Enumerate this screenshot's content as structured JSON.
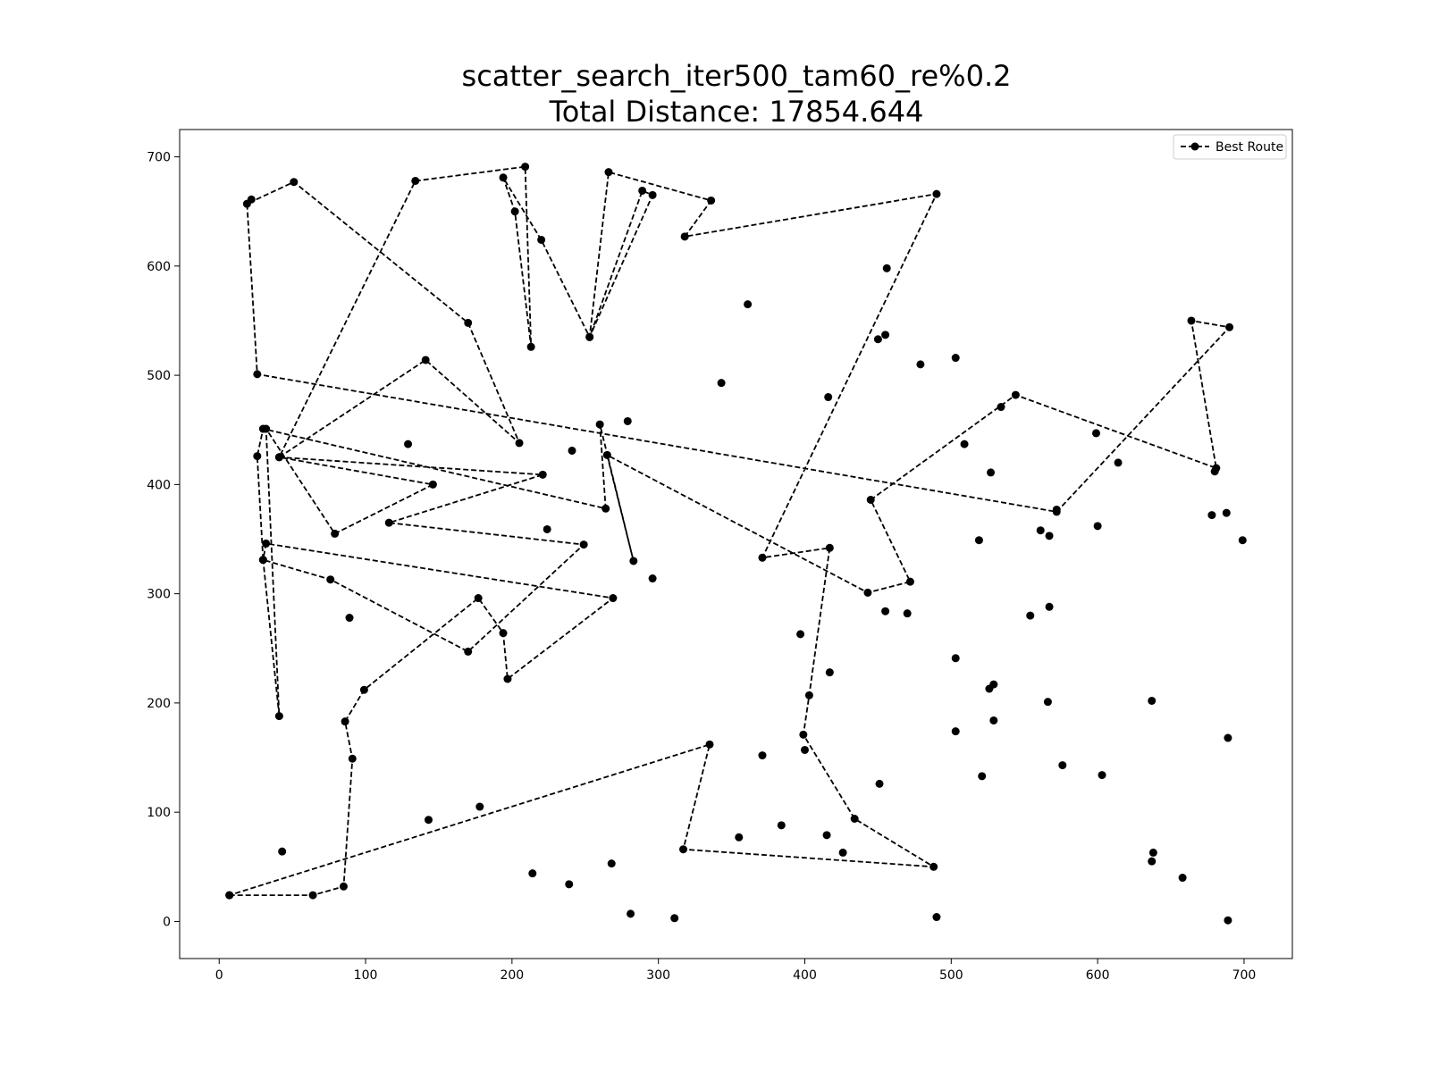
{
  "chart_data": {
    "type": "line",
    "title_line1": "scatter_search_iter500_tam60_re%0.2",
    "title_line2": "Total Distance: 17854.644",
    "xlim": [
      -27,
      733
    ],
    "ylim": [
      -34,
      725
    ],
    "xticks": [
      0,
      100,
      200,
      300,
      400,
      500,
      600,
      700
    ],
    "yticks": [
      0,
      100,
      200,
      300,
      400,
      500,
      600,
      700
    ],
    "legend_position": "top-right",
    "series": [
      {
        "name": "Best Route",
        "color": "#000000",
        "line_style": "dashed",
        "marker": "circle",
        "points": [
          [
            7,
            24
          ],
          [
            64,
            24
          ],
          [
            85,
            32
          ],
          [
            91,
            149
          ],
          [
            86,
            183
          ],
          [
            99,
            212
          ],
          [
            177,
            296
          ],
          [
            194,
            264
          ],
          [
            197,
            222
          ],
          [
            269,
            296
          ],
          [
            32,
            346
          ],
          [
            30,
            331
          ],
          [
            41,
            188
          ],
          [
            32,
            451
          ],
          [
            79,
            355
          ],
          [
            146,
            400
          ],
          [
            41,
            425
          ],
          [
            221,
            409
          ],
          [
            116,
            365
          ],
          [
            249,
            345
          ],
          [
            170,
            247
          ],
          [
            76,
            313
          ],
          [
            30,
            331
          ],
          [
            26,
            426
          ],
          [
            30,
            451
          ],
          [
            264,
            378
          ],
          [
            260,
            455
          ],
          [
            283,
            330
          ],
          [
            265,
            427
          ],
          [
            443,
            301
          ],
          [
            472,
            311
          ],
          [
            445,
            386
          ],
          [
            544,
            482
          ],
          [
            681,
            415
          ],
          [
            664,
            550
          ],
          [
            690,
            544
          ],
          [
            572,
            375
          ],
          [
            26,
            501
          ],
          [
            19,
            657
          ],
          [
            51,
            677
          ],
          [
            170,
            548
          ],
          [
            205,
            438
          ],
          [
            141,
            514
          ],
          [
            41,
            425
          ],
          [
            134,
            678
          ],
          [
            209,
            691
          ],
          [
            213,
            526
          ],
          [
            202,
            650
          ],
          [
            194,
            681
          ],
          [
            220,
            624
          ],
          [
            253,
            535
          ],
          [
            296,
            665
          ],
          [
            289,
            669
          ],
          [
            253,
            535
          ],
          [
            266,
            686
          ],
          [
            336,
            660
          ],
          [
            318,
            627
          ],
          [
            490,
            666
          ],
          [
            371,
            333
          ],
          [
            417,
            342
          ],
          [
            403,
            207
          ],
          [
            399,
            171
          ],
          [
            434,
            94
          ],
          [
            488,
            50
          ],
          [
            317,
            66
          ],
          [
            335,
            162
          ],
          [
            7,
            24
          ]
        ]
      }
    ],
    "other_points": [
      [
        22,
        661
      ],
      [
        241,
        431
      ],
      [
        129,
        437
      ],
      [
        279,
        458
      ],
      [
        224,
        359
      ],
      [
        296,
        314
      ],
      [
        89,
        278
      ],
      [
        43,
        64
      ],
      [
        268,
        53
      ],
      [
        143,
        93
      ],
      [
        178,
        105
      ],
      [
        214,
        44
      ],
      [
        239,
        34
      ],
      [
        281,
        7
      ],
      [
        311,
        3
      ],
      [
        355,
        77
      ],
      [
        384,
        88
      ],
      [
        415,
        79
      ],
      [
        426,
        63
      ],
      [
        490,
        4
      ],
      [
        371,
        152
      ],
      [
        400,
        157
      ],
      [
        417,
        228
      ],
      [
        397,
        263
      ],
      [
        455,
        284
      ],
      [
        470,
        282
      ],
      [
        503,
        241
      ],
      [
        503,
        174
      ],
      [
        529,
        184
      ],
      [
        521,
        133
      ],
      [
        451,
        126
      ],
      [
        689,
        168
      ],
      [
        529,
        217
      ],
      [
        526,
        213
      ],
      [
        519,
        349
      ],
      [
        561,
        358
      ],
      [
        567,
        353
      ],
      [
        567,
        288
      ],
      [
        566,
        201
      ],
      [
        554,
        280
      ],
      [
        576,
        143
      ],
      [
        603,
        134
      ],
      [
        637,
        55
      ],
      [
        638,
        63
      ],
      [
        658,
        40
      ],
      [
        689,
        1
      ],
      [
        699,
        349
      ],
      [
        637,
        202
      ],
      [
        600,
        362
      ],
      [
        678,
        372
      ],
      [
        688,
        374
      ],
      [
        614,
        420
      ],
      [
        599,
        447
      ],
      [
        680,
        412
      ],
      [
        534,
        471
      ],
      [
        509,
        437
      ],
      [
        527,
        411
      ],
      [
        572,
        377
      ],
      [
        503,
        516
      ],
      [
        479,
        510
      ],
      [
        455,
        537
      ],
      [
        450,
        533
      ],
      [
        416,
        480
      ],
      [
        343,
        493
      ],
      [
        361,
        565
      ],
      [
        456,
        598
      ]
    ]
  }
}
